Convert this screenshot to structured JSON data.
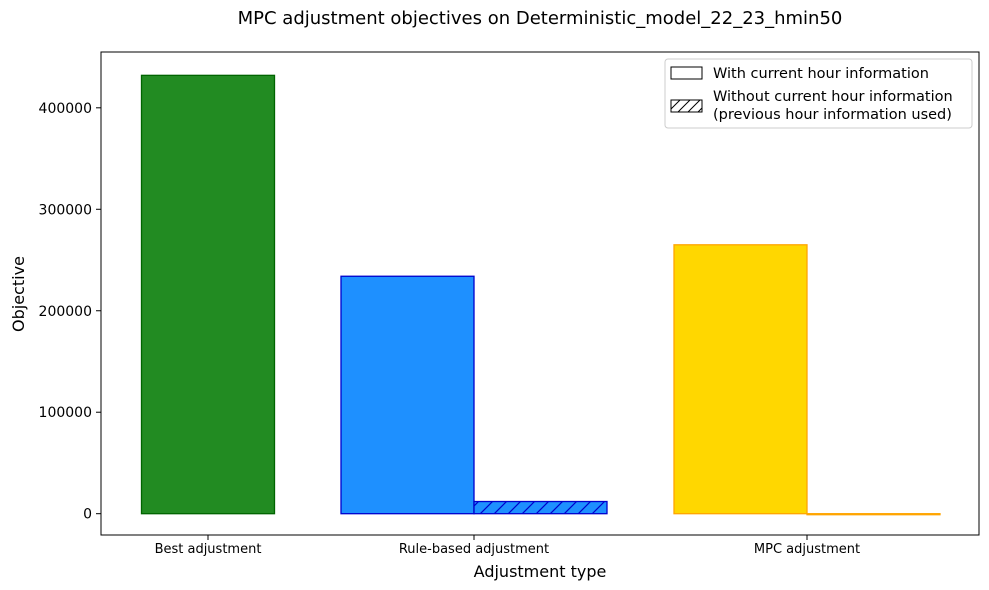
{
  "chart_data": {
    "type": "bar",
    "title": "MPC adjustment objectives on Deterministic_model_22_23_hmin50",
    "xlabel": "Adjustment type",
    "ylabel": "Objective",
    "categories": [
      "Best adjustment",
      "Rule-based adjustment",
      "MPC adjustment"
    ],
    "ylim": [
      -21000,
      455000
    ],
    "yticks": [
      0,
      100000,
      200000,
      300000,
      400000
    ],
    "grid": false,
    "legend_position": "top-right",
    "legend": [
      {
        "label": "With current hour information",
        "hatch": false
      },
      {
        "label": "Without current hour information\n(previous hour information used)",
        "hatch": true
      }
    ],
    "bars": [
      {
        "category": "Best adjustment",
        "slot": 0.5,
        "value": 432000,
        "fill": "#228B22",
        "edge": "#006400",
        "hatched": false
      },
      {
        "category": "Rule-based adjustment",
        "slot": 0,
        "value": 234000,
        "fill": "#1E90FF",
        "edge": "#0000CD",
        "hatched": false
      },
      {
        "category": "Rule-based adjustment",
        "slot": 1,
        "value": 12000,
        "fill": "#1E90FF",
        "edge": "#0000CD",
        "hatched": true
      },
      {
        "category": "MPC adjustment",
        "slot": 0,
        "value": 265000,
        "fill": "#FFD700",
        "edge": "#FFA500",
        "hatched": false
      },
      {
        "category": "MPC adjustment",
        "slot": 1,
        "value": -1000,
        "fill": "#FFD700",
        "edge": "#FFA500",
        "hatched": true
      }
    ]
  }
}
